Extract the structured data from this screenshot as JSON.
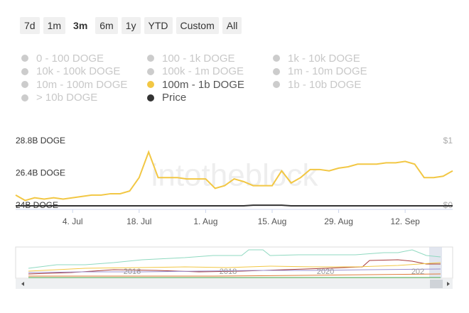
{
  "range_buttons": {
    "options": [
      "7d",
      "1m",
      "3m",
      "6m",
      "1y",
      "YTD",
      "Custom",
      "All"
    ],
    "selected": 2
  },
  "chart_data": {
    "type": "line",
    "watermark": "intotheblock",
    "categories": [
      null,
      null,
      null,
      null,
      null,
      null,
      "4. Jul",
      null,
      null,
      null,
      null,
      null,
      null,
      "18. Jul",
      null,
      null,
      null,
      null,
      null,
      null,
      "1. Aug",
      null,
      null,
      null,
      null,
      null,
      null,
      "15. Aug",
      null,
      null,
      null,
      null,
      null,
      null,
      "29. Aug",
      null,
      null,
      null,
      null,
      null,
      null,
      "12. Sep",
      null,
      null,
      null,
      null,
      null
    ],
    "series": [
      {
        "name": "0 - 100 DOGE",
        "color": "#cccccc",
        "visible": false
      },
      {
        "name": "100 - 1k DOGE",
        "color": "#cccccc",
        "visible": false
      },
      {
        "name": "1k - 10k DOGE",
        "color": "#cccccc",
        "visible": false
      },
      {
        "name": "10k - 100k DOGE",
        "color": "#cccccc",
        "visible": false
      },
      {
        "name": "100k - 1m DOGE",
        "color": "#cccccc",
        "visible": false
      },
      {
        "name": "1m - 10m DOGE",
        "color": "#cccccc",
        "visible": false
      },
      {
        "name": "10m - 100m DOGE",
        "color": "#cccccc",
        "visible": false
      },
      {
        "name": "100m - 1b DOGE",
        "color": "#f2c744",
        "visible": true,
        "values": [
          24.8,
          24.4,
          24.6,
          24.5,
          24.6,
          24.5,
          24.6,
          24.7,
          24.8,
          24.8,
          24.9,
          24.9,
          25.1,
          26.1,
          28.0,
          26.1,
          26.1,
          26.1,
          26.0,
          26.0,
          26.0,
          25.3,
          25.5,
          26.0,
          25.8,
          25.5,
          25.5,
          25.5,
          26.6,
          25.7,
          26.1,
          26.7,
          26.7,
          26.6,
          26.8,
          26.9,
          27.1,
          27.1,
          27.1,
          27.2,
          27.2,
          27.3,
          27.1,
          26.1,
          26.1,
          26.2,
          26.6
        ]
      },
      {
        "name": "1b - 10b DOGE",
        "color": "#cccccc",
        "visible": false
      },
      {
        "name": "> 10b DOGE",
        "color": "#cccccc",
        "visible": false
      },
      {
        "name": "Price",
        "color": "#333333",
        "visible": true,
        "axis": "y2",
        "values": [
          0.0,
          0.0,
          0.0,
          0.0,
          0.0,
          0.0,
          0.0,
          0.0,
          0.0,
          0.0,
          0.0,
          0.0,
          0.0,
          0.0,
          0.0,
          0.0,
          0.0,
          0.0,
          0.0,
          0.0,
          0.0,
          0.0,
          0.0,
          0.0,
          0.0,
          0.01,
          0.01,
          0.01,
          0.01,
          0.0,
          0.0,
          0.0,
          0.0,
          0.0,
          0.0,
          0.0,
          0.0,
          0.0,
          0.0,
          0.0,
          0.0,
          0.0,
          0.0,
          0.0,
          0.0,
          0.0,
          0.0
        ]
      }
    ],
    "ylim": [
      24,
      28.8
    ],
    "yticks": [
      {
        "value": 24,
        "label": "24B DOGE"
      },
      {
        "value": 26.4,
        "label": "26.4B DOGE"
      },
      {
        "value": 28.8,
        "label": "28.8B DOGE"
      }
    ],
    "y2lim": [
      0,
      1
    ],
    "y2ticks": [
      {
        "value": 0,
        "label": "$0"
      },
      {
        "value": 1,
        "label": "$1"
      }
    ],
    "grid": false
  },
  "navigator": {
    "labels": [
      "2016",
      "2018",
      "2020",
      "202"
    ]
  }
}
